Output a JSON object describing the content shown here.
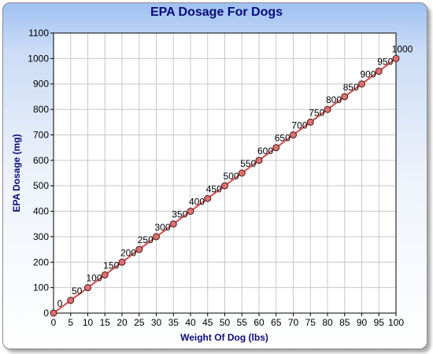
{
  "chart_data": {
    "type": "line",
    "title": "EPA Dosage For Dogs",
    "xlabel": "Weight Of Dog (lbs)",
    "ylabel": "EPA Dosage (mg)",
    "x": [
      0,
      5,
      10,
      15,
      20,
      25,
      30,
      35,
      40,
      45,
      50,
      55,
      60,
      65,
      70,
      75,
      80,
      85,
      90,
      95,
      100
    ],
    "series": [
      {
        "values": [
          0,
          50,
          100,
          150,
          200,
          250,
          300,
          350,
          400,
          450,
          500,
          550,
          600,
          650,
          700,
          750,
          800,
          850,
          900,
          950,
          1000
        ],
        "color": "#d84a4a"
      }
    ],
    "data_labels": [
      "0",
      "50",
      "100",
      "150",
      "200",
      "250",
      "300",
      "350",
      "400",
      "450",
      "500",
      "550",
      "600",
      "650",
      "700",
      "750",
      "800",
      "850",
      "900",
      "950",
      "1000"
    ],
    "xlim": [
      0,
      100
    ],
    "ylim": [
      0,
      1100
    ],
    "xticks": [
      "0",
      "5",
      "10",
      "15",
      "20",
      "25",
      "30",
      "35",
      "40",
      "45",
      "50",
      "55",
      "60",
      "65",
      "70",
      "75",
      "80",
      "85",
      "90",
      "95",
      "100"
    ],
    "yticks": [
      "0",
      "100",
      "200",
      "300",
      "400",
      "500",
      "600",
      "700",
      "800",
      "900",
      "1000",
      "1100"
    ],
    "grid": true,
    "legend": "none"
  },
  "colors": {
    "title": "#0b0b7a",
    "line": "#d84a4a",
    "marker_fill": "#e07070",
    "marker_stroke": "#4a1a1a",
    "grid": "#c8c8c8"
  }
}
